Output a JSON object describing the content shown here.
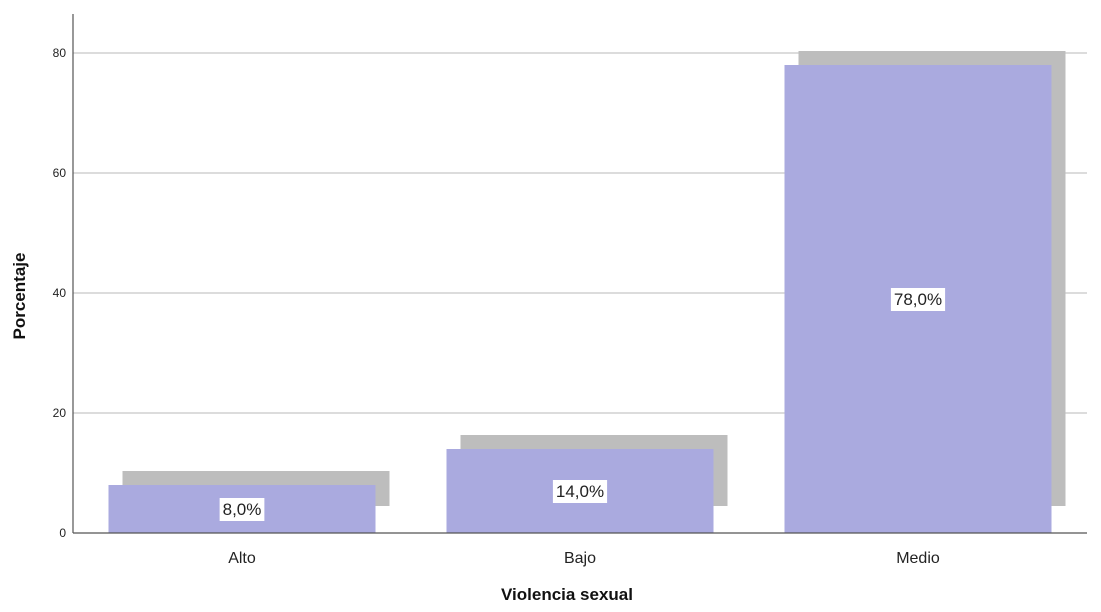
{
  "chart_data": {
    "type": "bar",
    "title": "",
    "xlabel": "Violencia sexual",
    "ylabel": "Porcentaje",
    "categories": [
      "Alto",
      "Bajo",
      "Medio"
    ],
    "values": [
      8.0,
      14.0,
      78.0
    ],
    "data_labels": [
      "8,0%",
      "14,0%",
      "78,0%"
    ],
    "ylim": [
      0,
      80
    ],
    "yticks": [
      0,
      20,
      40,
      60,
      80
    ],
    "ytick_labels": [
      "0",
      "20",
      "40",
      "60",
      "80"
    ],
    "grid": true,
    "legend": "none",
    "colors": {
      "bar": "#aaaadf",
      "shadow": "#bdbdbd",
      "grid": "#c8c8c8",
      "axis": "#555555",
      "label_bg": "#ffffff"
    }
  }
}
